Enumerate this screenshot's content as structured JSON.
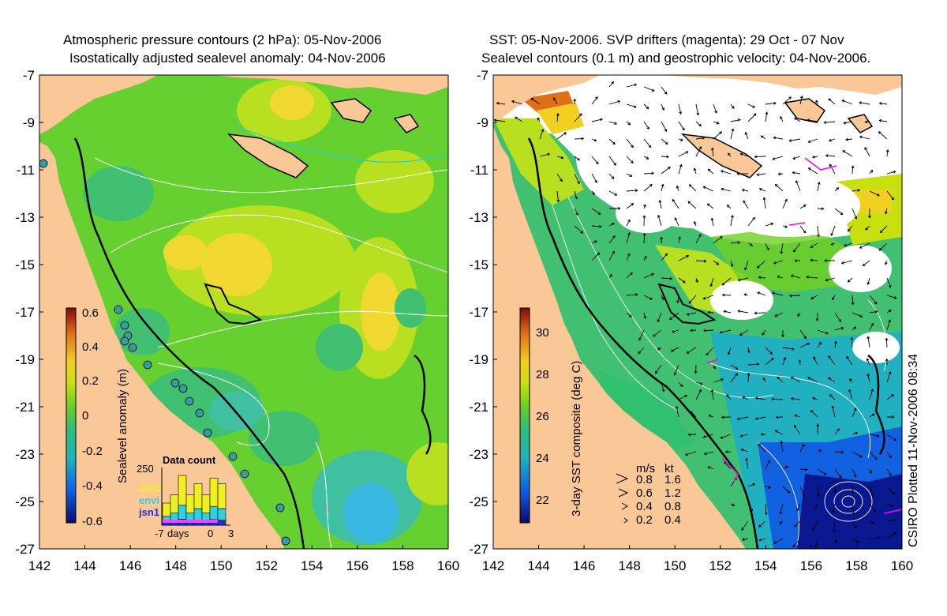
{
  "left_panel": {
    "title_line1": "Atmospheric pressure contours (2 hPa): 05-Nov-2006",
    "title_line2": "Isostatically adjusted sealevel anomaly: 04-Nov-2006",
    "colorbar": {
      "label": "Sealevel anomaly (m)",
      "ticks": [
        "0.6",
        "0.4",
        "0.2",
        "0",
        "-0.2",
        "-0.4",
        "-0.6"
      ]
    },
    "data_count": {
      "title": "Data count",
      "ymax": "250",
      "sat1": "GFO",
      "sat2": "envi",
      "sat3": "jsn1",
      "xticks": [
        "-7",
        "0",
        "3"
      ],
      "xunit": "days",
      "bar_fill": [
        0.4,
        0.55,
        0.9,
        0.55,
        0.75,
        0.55,
        0.85,
        0.75
      ]
    }
  },
  "right_panel": {
    "title_line1": "SST: 05-Nov-2006. SVP drifters (magenta): 29 Oct - 07 Nov",
    "title_line2": "Sealevel contours (0.1 m) and geostrophic velocity: 04-Nov-2006.",
    "colorbar": {
      "label": "3-day SST composite (deg C)",
      "ticks": [
        "30",
        "28",
        "26",
        "24",
        "22"
      ]
    },
    "velocity_legend": {
      "header_ms": "m/s",
      "header_kt": "kt",
      "rows": [
        {
          "ms": "0.8",
          "kt": "1.6"
        },
        {
          "ms": "0.6",
          "kt": "1.2"
        },
        {
          "ms": "0.4",
          "kt": "0.8"
        },
        {
          "ms": "0.2",
          "kt": "0.4"
        }
      ]
    }
  },
  "axes": {
    "lat_ticks": [
      "-7",
      "-9",
      "-11",
      "-13",
      "-15",
      "-17",
      "-19",
      "-21",
      "-23",
      "-25",
      "-27"
    ],
    "lon_ticks": [
      "142",
      "144",
      "146",
      "148",
      "150",
      "152",
      "154",
      "156",
      "158",
      "160"
    ]
  },
  "credit": "CSIRO Plotted 11-Nov-2006 08:34",
  "colors": {
    "land": "#fac896",
    "ocean_green": "#66d030",
    "sst_white": "#ffffff",
    "drifter": "#ff00ff"
  }
}
